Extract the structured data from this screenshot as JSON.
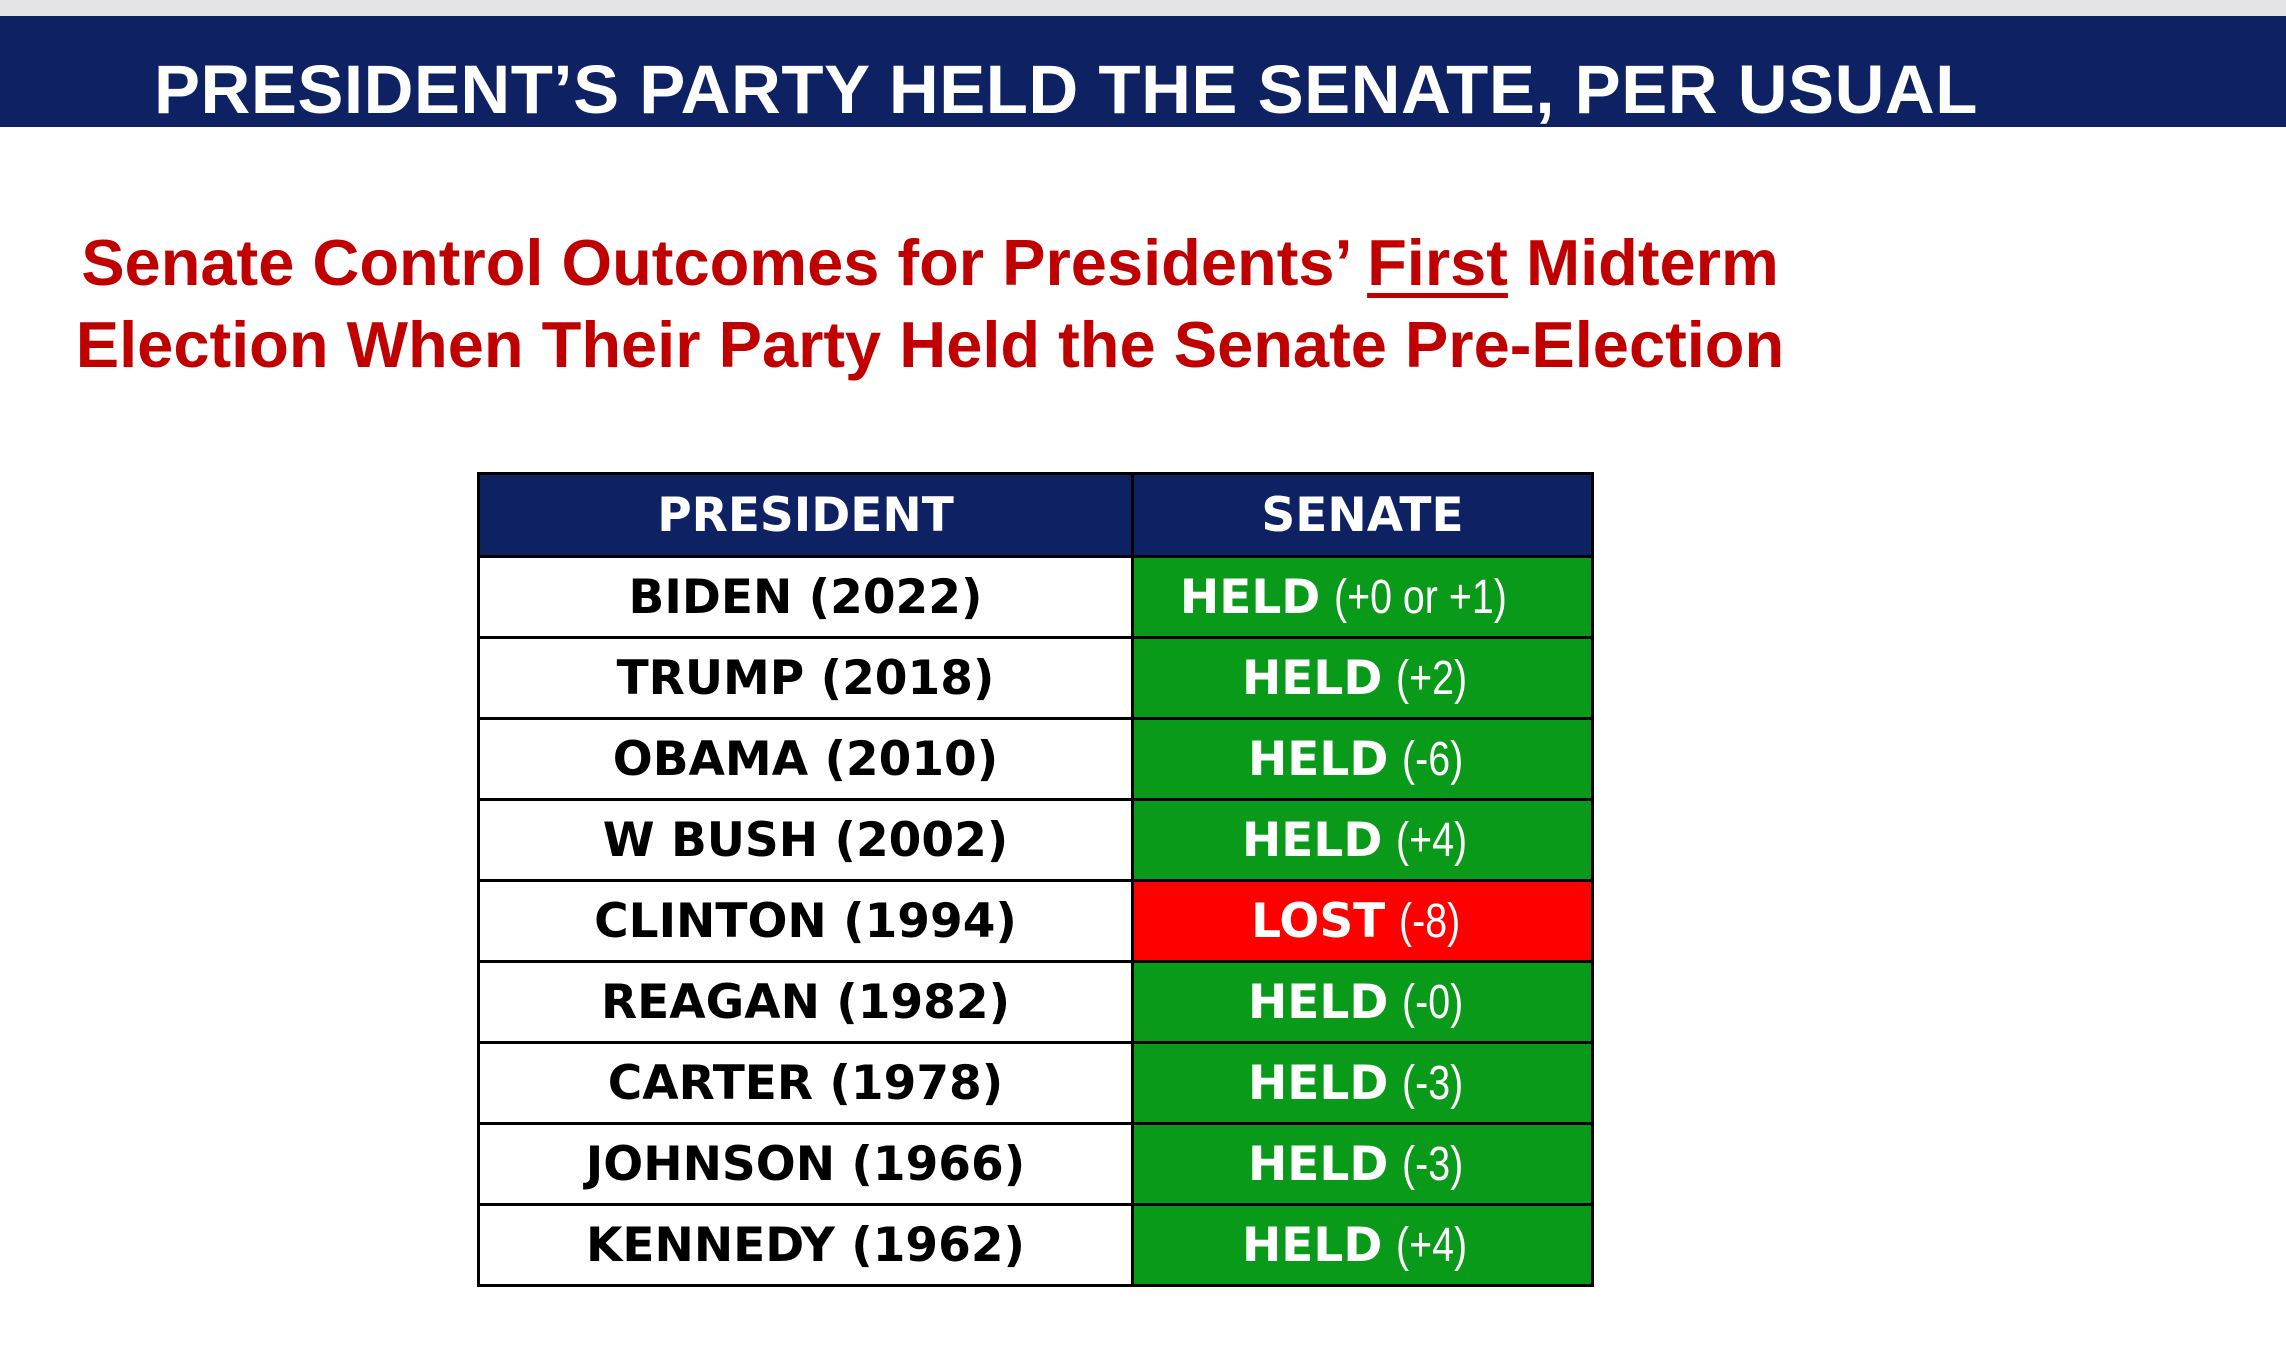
{
  "header": {
    "title": "PRESIDENT’S PARTY HELD THE SENATE, PER USUAL"
  },
  "subtitle": {
    "line1_before": "Senate Control Outcomes for Presidents’ ",
    "line1_emphasis": "First",
    "line1_after": " Midterm",
    "line2": "Election When Their Party Held the Senate Pre-Election"
  },
  "table": {
    "columns": [
      "PRESIDENT",
      "SENATE"
    ],
    "rows": [
      {
        "president": "BIDEN (2022)",
        "status": "HELD",
        "change": "(+0 or +1)"
      },
      {
        "president": "TRUMP (2018)",
        "status": "HELD",
        "change": "(+2)"
      },
      {
        "president": "OBAMA (2010)",
        "status": "HELD",
        "change": "(-6)"
      },
      {
        "president": "W BUSH (2002)",
        "status": "HELD",
        "change": "(+4)"
      },
      {
        "president": "CLINTON (1994)",
        "status": "LOST",
        "change": "(-8)"
      },
      {
        "president": "REAGAN (1982)",
        "status": "HELD",
        "change": "(-0)"
      },
      {
        "president": "CARTER (1978)",
        "status": "HELD",
        "change": "(-3)"
      },
      {
        "president": "JOHNSON (1966)",
        "status": "HELD",
        "change": "(-3)"
      },
      {
        "president": "KENNEDY (1962)",
        "status": "HELD",
        "change": "(+4)"
      }
    ]
  },
  "colors": {
    "navy": "#0d2163",
    "held_green": "#0a9a1a",
    "lost_red": "#ff0000",
    "subtitle_red": "#c00000"
  }
}
